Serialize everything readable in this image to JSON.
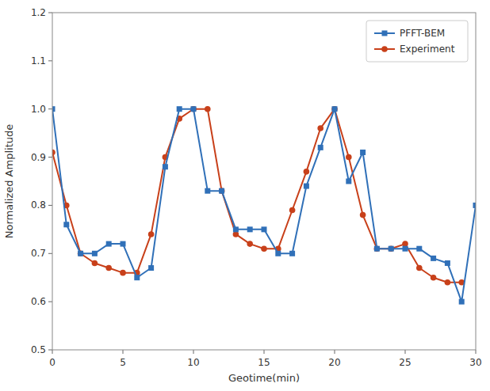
{
  "chart_data": {
    "type": "line",
    "xlabel": "Geotime(min)",
    "ylabel": "Normalized Amplitude",
    "xlim": [
      0,
      30
    ],
    "ylim": [
      0.5,
      1.2
    ],
    "xticks": [
      0,
      5,
      10,
      15,
      20,
      25,
      30
    ],
    "yticks": [
      0.5,
      0.6,
      0.7,
      0.8,
      0.9,
      {
        "value": 1.0,
        "label": "1.0"
      },
      1.1,
      1.2
    ],
    "grid": false,
    "legend": "upper right",
    "series": [
      {
        "name": "PFFT-BEM",
        "color": "#3070b8",
        "marker": "square",
        "x": [
          0,
          1,
          2,
          3,
          4,
          5,
          6,
          7,
          8,
          9,
          10,
          11,
          12,
          13,
          14,
          15,
          16,
          17,
          18,
          19,
          20,
          21,
          22,
          23,
          24,
          25,
          26,
          27,
          28,
          29,
          30
        ],
        "values": [
          1.0,
          0.76,
          0.7,
          0.7,
          0.72,
          0.72,
          0.65,
          0.67,
          0.88,
          1.0,
          1.0,
          0.83,
          0.83,
          0.75,
          0.75,
          0.75,
          0.7,
          0.7,
          0.84,
          0.92,
          1.0,
          0.85,
          0.91,
          0.71,
          0.71,
          0.71,
          0.71,
          0.69,
          0.68,
          0.6,
          0.8
        ]
      },
      {
        "name": "Experiment",
        "color": "#c8401a",
        "marker": "circle",
        "x": [
          0,
          1,
          2,
          3,
          4,
          5,
          6,
          7,
          8,
          9,
          10,
          11,
          12,
          13,
          14,
          15,
          16,
          17,
          18,
          19,
          20,
          21,
          22,
          23,
          24,
          25,
          26,
          27,
          28,
          29
        ],
        "values": [
          0.91,
          0.8,
          0.7,
          0.68,
          0.67,
          0.66,
          0.66,
          0.74,
          0.9,
          0.98,
          1.0,
          1.0,
          0.83,
          0.74,
          0.72,
          0.71,
          0.71,
          0.79,
          0.87,
          0.96,
          1.0,
          0.9,
          0.78,
          0.71,
          0.71,
          0.72,
          0.67,
          0.65,
          0.64,
          0.64
        ]
      }
    ]
  }
}
